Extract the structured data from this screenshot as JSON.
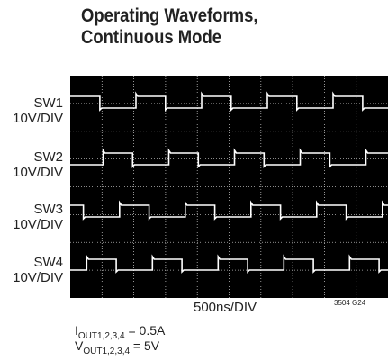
{
  "header": {
    "title_lines": [
      "Operating Waveforms,",
      "Continuous Mode"
    ]
  },
  "channels": [
    {
      "name": "SW1",
      "scale": "10V/DIV"
    },
    {
      "name": "SW2",
      "scale": "10V/DIV"
    },
    {
      "name": "SW3",
      "scale": "10V/DIV"
    },
    {
      "name": "SW4",
      "scale": "10V/DIV"
    }
  ],
  "time_scale": "500ns/DIV",
  "figure_id": "3504 G24",
  "notes": [
    {
      "symbol": "I",
      "subscript": "OUT1,2,3,4",
      "value": " = 0.5A"
    },
    {
      "symbol": "V",
      "subscript": "OUT1,2,3,4",
      "value": " = 5V"
    }
  ]
}
